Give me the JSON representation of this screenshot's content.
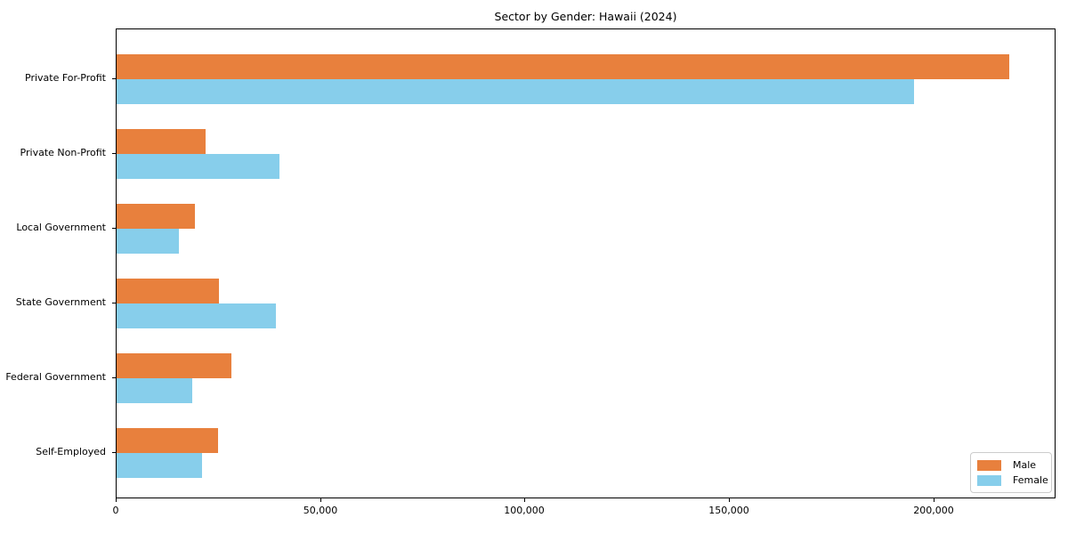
{
  "chart_data": {
    "type": "bar",
    "orientation": "horizontal",
    "title": "Sector by Gender: Hawaii (2024)",
    "xlabel": "",
    "ylabel": "",
    "categories": [
      "Private For-Profit",
      "Private Non-Profit",
      "Local Government",
      "State Government",
      "Federal Government",
      "Self-Employed"
    ],
    "series": [
      {
        "name": "Male",
        "color": "#e8803d",
        "values": [
          218500,
          21700,
          19100,
          25000,
          28000,
          24800
        ]
      },
      {
        "name": "Female",
        "color": "#87ceeb",
        "values": [
          195000,
          39800,
          15200,
          39000,
          18500,
          21000
        ]
      }
    ],
    "xlim": [
      0,
      229500
    ],
    "xticks": [
      0,
      50000,
      100000,
      150000,
      200000
    ],
    "xtick_labels": [
      "0",
      "50,000",
      "100,000",
      "150,000",
      "200,000"
    ],
    "legend_position": "lower right",
    "grid": false,
    "background_color": "#ffffff",
    "spine_color": "#000000"
  }
}
